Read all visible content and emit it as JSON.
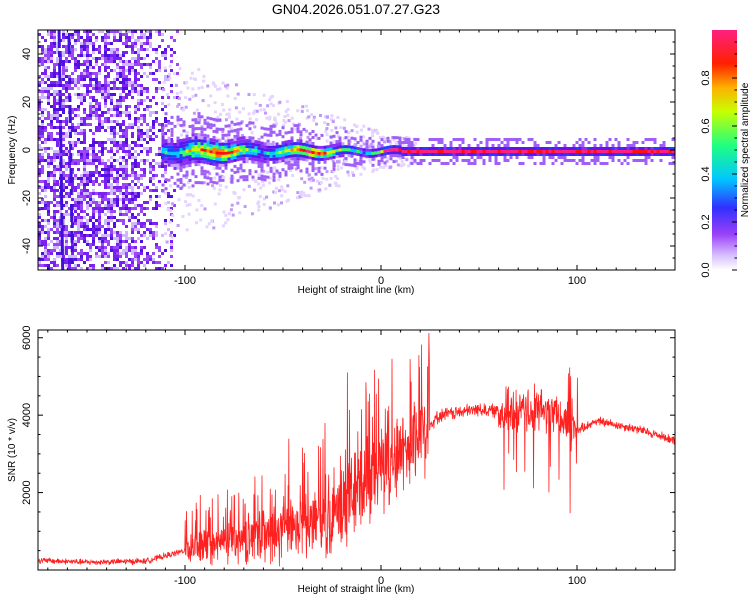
{
  "title": "GN04.2026.051.07.27.G23",
  "chart_data": [
    {
      "type": "heatmap",
      "title": "GN04.2026.051.07.27.G23",
      "xlabel": "Height of straight line (km)",
      "ylabel": "Frequency (Hz)",
      "xlim": [
        -175,
        150
      ],
      "ylim": [
        -50,
        50
      ],
      "xticks": [
        -100,
        0,
        100
      ],
      "yticks": [
        -40,
        -20,
        0,
        20,
        40
      ],
      "colorbar": {
        "label": "Normalized spectral amplitude",
        "range": [
          0.0,
          1.0
        ],
        "ticks": [
          0.0,
          0.2,
          0.4,
          0.6,
          0.8
        ],
        "tick_labels": [
          "0.0",
          "0.2",
          "0.4",
          "0.6",
          "0.8"
        ],
        "colors": [
          "#ffffff",
          "#c8a8f8",
          "#7a20f0",
          "#2040ff",
          "#00d0ff",
          "#30ff60",
          "#f0f000",
          "#ff8000",
          "#ff0000",
          "#ff2080"
        ]
      },
      "features": {
        "noise_region_x": [
          -175,
          -112
        ],
        "signal_onset_x": -112,
        "signal_center_hz": 0,
        "signal_halfwidth_hz_at_onset": 6,
        "signal_halfwidth_hz_at_end": 1.5
      }
    },
    {
      "type": "line",
      "xlabel": "Height of straight line (km)",
      "ylabel": "SNR (10 * v/v)",
      "xlim": [
        -175,
        150
      ],
      "ylim": [
        0,
        6200
      ],
      "xticks": [
        -100,
        0,
        100
      ],
      "yticks": [
        2000,
        4000,
        6000
      ],
      "series": [
        {
          "name": "SNR",
          "color": "#ff2020",
          "x": [
            -175,
            -150,
            -120,
            -100,
            -80,
            -60,
            -40,
            -20,
            0,
            10,
            20,
            30,
            50,
            60,
            70,
            80,
            85,
            90,
            95,
            100,
            110,
            130,
            150
          ],
          "values": [
            250,
            200,
            230,
            500,
            700,
            850,
            1000,
            1600,
            2600,
            3000,
            3500,
            4000,
            4150,
            4100,
            4050,
            4150,
            4100,
            4000,
            3800,
            3600,
            3850,
            3650,
            3350
          ]
        }
      ]
    }
  ]
}
